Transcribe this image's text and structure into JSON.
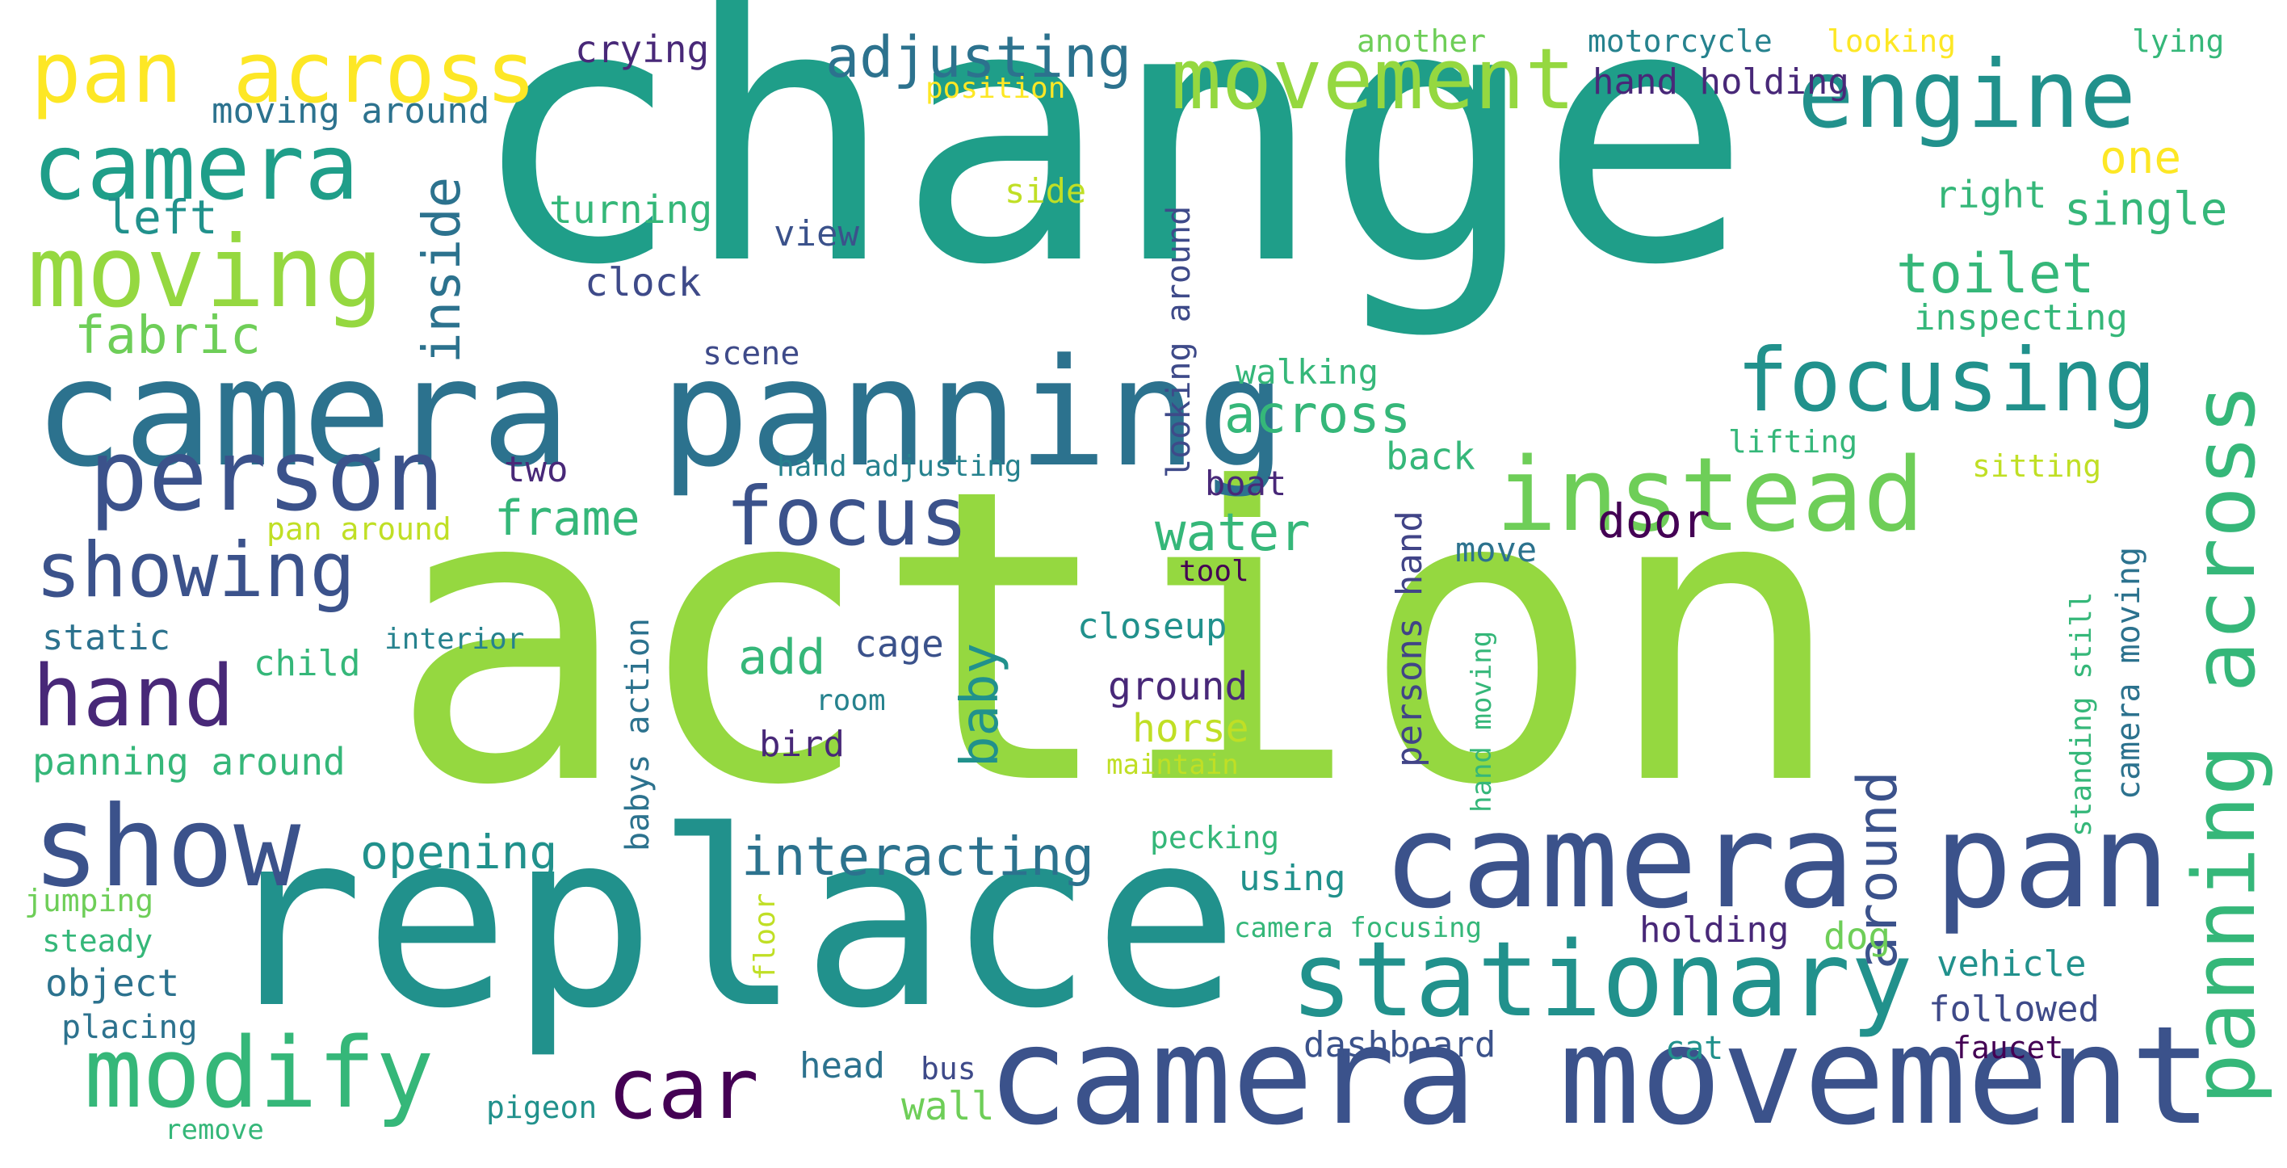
{
  "palette": {
    "background": "#ffffff",
    "c1": "#1f9e89",
    "c2": "#95d840",
    "c3": "#3b528b",
    "c4": "#21918c",
    "c5": "#440154",
    "c6": "#35b779",
    "c7": "#fde725",
    "c8": "#482878",
    "c9": "#2c728e",
    "c10": "#6ece58",
    "c11": "#c0df25",
    "c12": "#414487",
    "c13": "#3e4a89",
    "c14": "#26828e"
  },
  "words": [
    "change",
    "action",
    "replace",
    "camera panning",
    "camera movement",
    "camera pan",
    "pan across",
    "movement",
    "engine",
    "camera",
    "moving",
    "person",
    "instead",
    "focusing",
    "panning across",
    "stationary",
    "modify",
    "show",
    "showing",
    "hand",
    "car",
    "focus",
    "adjusting",
    "interacting",
    "inside",
    "toilet",
    "fabric",
    "left",
    "across",
    "water",
    "frame",
    "door",
    "add",
    "baby",
    "around",
    "opening",
    "one",
    "single",
    "crying",
    "moving around",
    "hand holding",
    "motorcycle",
    "another",
    "looking",
    "lying",
    "position",
    "turning",
    "view",
    "clock",
    "side",
    "right",
    "inspecting",
    "scene",
    "looking around",
    "walking",
    "lifting",
    "hand adjusting",
    "two",
    "back",
    "sitting",
    "pan around",
    "boat",
    "move",
    "persons hand",
    "tool",
    "interior",
    "static",
    "closeup",
    "cage",
    "child",
    "ground",
    "room",
    "babys action",
    "horse",
    "panning around",
    "bird",
    "maintain",
    "hand moving",
    "standing still",
    "camera moving",
    "pecking",
    "using",
    "jumping",
    "steady",
    "object",
    "placing",
    "remove",
    "pigeon",
    "head",
    "bus",
    "wall",
    "dashboard",
    "cat",
    "faucet",
    "holding",
    "dog",
    "vehicle",
    "followed",
    "camera focusing",
    "floor"
  ]
}
